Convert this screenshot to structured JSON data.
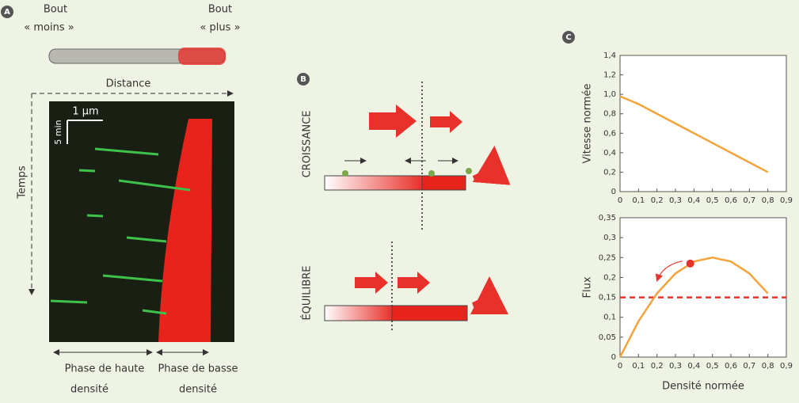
{
  "panel_a": {
    "label": "A",
    "minus_end": [
      "Bout",
      "« moins »"
    ],
    "plus_end": [
      "Bout",
      "« plus »"
    ],
    "distance_label": "Distance",
    "time_label": "Temps",
    "scale_distance": "1 μm",
    "scale_time": "5 min",
    "high_density_phase": [
      "Phase de haute",
      "densité"
    ],
    "low_density_phase": [
      "Phase de basse",
      "densité"
    ]
  },
  "panel_b": {
    "label": "B",
    "growth_label": "CROISSANCE",
    "equilibrium_label": "ÉQUILIBRE"
  },
  "panel_c": {
    "label": "C"
  },
  "chart_data": [
    {
      "type": "line",
      "ylabel": "Vitesse normée",
      "color": "#f4a43a",
      "x": [
        0,
        0.1,
        0.2,
        0.3,
        0.4,
        0.5,
        0.6,
        0.7,
        0.8
      ],
      "values": [
        0.98,
        0.9,
        0.8,
        0.7,
        0.6,
        0.5,
        0.4,
        0.3,
        0.2
      ],
      "xlim": [
        0,
        0.9
      ],
      "ylim": [
        0,
        1.4
      ],
      "xticks": [
        0,
        {
          "value": 0.1,
          "label": "0,1"
        },
        {
          "value": 0.2,
          "label": "0,2"
        },
        {
          "value": 0.3,
          "label": "0,3"
        },
        {
          "value": 0.4,
          "label": "0,4"
        },
        {
          "value": 0.5,
          "label": "0,5"
        },
        {
          "value": 0.6,
          "label": "0,6"
        },
        {
          "value": 0.7,
          "label": "0,7"
        },
        {
          "value": 0.8,
          "label": "0,8"
        },
        {
          "value": 0.9,
          "label": "0,9"
        }
      ],
      "yticks": [
        0,
        {
          "value": 0.2,
          "label": "0,2"
        },
        {
          "value": 0.4,
          "label": "0,4"
        },
        {
          "value": 0.6,
          "label": "0,6"
        },
        {
          "value": 0.8,
          "label": "0,8"
        },
        {
          "value": 1,
          "label": "1,0"
        },
        {
          "value": 1.2,
          "label": "1,2"
        },
        {
          "value": 1.4,
          "label": "1,4"
        }
      ]
    },
    {
      "type": "line",
      "xlabel": "Densité normée",
      "ylabel": "Flux",
      "color": "#f4a43a",
      "x": [
        0,
        0.1,
        0.2,
        0.3,
        0.4,
        0.5,
        0.6,
        0.7,
        0.8
      ],
      "values": [
        0,
        0.09,
        0.16,
        0.21,
        0.24,
        0.25,
        0.24,
        0.21,
        0.16
      ],
      "xlim": [
        0,
        0.9
      ],
      "ylim": [
        0,
        0.35
      ],
      "xticks": [
        0,
        {
          "value": 0.1,
          "label": "0,1"
        },
        {
          "value": 0.2,
          "label": "0,2"
        },
        {
          "value": 0.3,
          "label": "0,3"
        },
        {
          "value": 0.4,
          "label": "0,4"
        },
        {
          "value": 0.5,
          "label": "0,5"
        },
        {
          "value": 0.6,
          "label": "0,6"
        },
        {
          "value": 0.7,
          "label": "0,7"
        },
        {
          "value": 0.8,
          "label": "0,8"
        },
        {
          "value": 0.9,
          "label": "0,9"
        }
      ],
      "yticks": [
        0,
        {
          "value": 0.05,
          "label": "0,05"
        },
        {
          "value": 0.1,
          "label": "0,1"
        },
        {
          "value": 0.15,
          "label": "0,15"
        },
        {
          "value": 0.2,
          "label": "0,2"
        },
        {
          "value": 0.25,
          "label": "0,25"
        },
        {
          "value": 0.3,
          "label": "0,3"
        },
        {
          "value": 0.35,
          "label": "0,35"
        }
      ],
      "reference_line": {
        "value": 0.15,
        "color": "#e8312a"
      },
      "highlight": {
        "x": 0.38,
        "y": 0.235,
        "color": "#e8312a"
      }
    }
  ]
}
